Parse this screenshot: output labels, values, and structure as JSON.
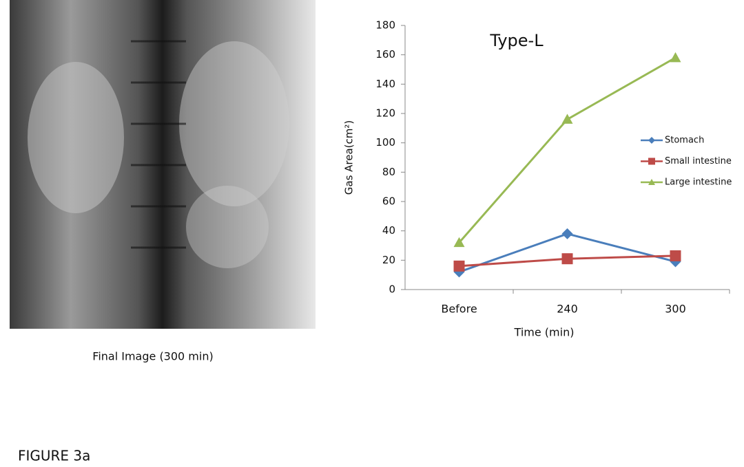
{
  "image_caption": "Final Image (300 min)",
  "figure_label": "FIGURE 3a",
  "chart_data": {
    "type": "line",
    "title": "Type-L",
    "x_label": "Time (min)",
    "y_label": "Gas  Area(cm²)",
    "categories": [
      "Before",
      "240",
      "300"
    ],
    "series": [
      {
        "name": "Stomach",
        "color": "#4a7ebb",
        "marker": "diamond",
        "values": [
          12,
          38,
          19
        ]
      },
      {
        "name": "Small intestine",
        "color": "#be4b48",
        "marker": "square",
        "values": [
          16,
          21,
          23
        ]
      },
      {
        "name": "Large intestine",
        "color": "#98b954",
        "marker": "triangle",
        "values": [
          32,
          116,
          158
        ]
      }
    ],
    "ylim": [
      0,
      180
    ],
    "yticks": [
      0,
      20,
      40,
      60,
      80,
      100,
      120,
      140,
      160,
      180
    ],
    "grid": false,
    "legend": "right"
  }
}
